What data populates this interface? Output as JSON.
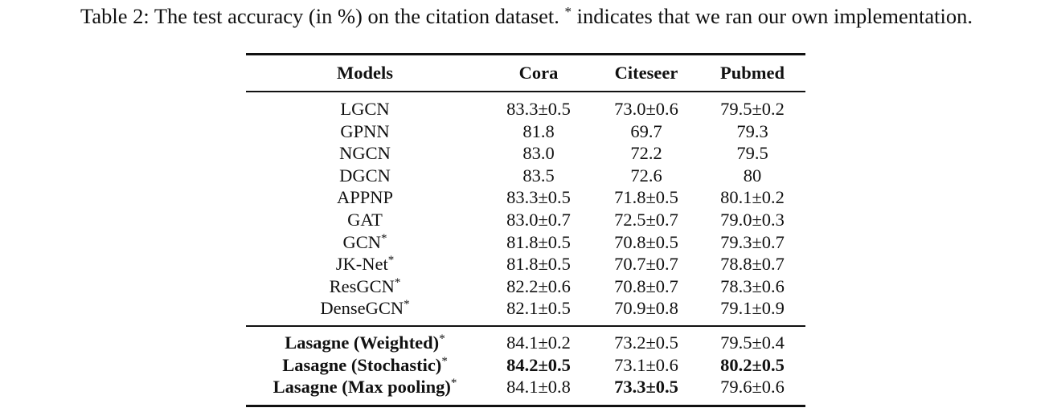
{
  "caption": {
    "prefix": "Table 2: The test accuracy (in %) on the citation dataset. ",
    "star": "*",
    "suffix": " indicates that we ran our own implementation."
  },
  "table": {
    "headers": [
      "Models",
      "Cora",
      "Citeseer",
      "Pubmed"
    ],
    "baselines": [
      {
        "model": "LGCN",
        "star": "",
        "cora": "83.3±0.5",
        "citeseer": "73.0±0.6",
        "pubmed": "79.5±0.2"
      },
      {
        "model": "GPNN",
        "star": "",
        "cora": "81.8",
        "citeseer": "69.7",
        "pubmed": "79.3"
      },
      {
        "model": "NGCN",
        "star": "",
        "cora": "83.0",
        "citeseer": "72.2",
        "pubmed": "79.5"
      },
      {
        "model": "DGCN",
        "star": "",
        "cora": "83.5",
        "citeseer": "72.6",
        "pubmed": "80"
      },
      {
        "model": "APPNP",
        "star": "",
        "cora": "83.3±0.5",
        "citeseer": "71.8±0.5",
        "pubmed": "80.1±0.2"
      },
      {
        "model": "GAT",
        "star": "",
        "cora": "83.0±0.7",
        "citeseer": "72.5±0.7",
        "pubmed": "79.0±0.3"
      },
      {
        "model": "GCN",
        "star": "*",
        "cora": "81.8±0.5",
        "citeseer": "70.8±0.5",
        "pubmed": "79.3±0.7"
      },
      {
        "model": "JK-Net",
        "star": "*",
        "cora": "81.8±0.5",
        "citeseer": "70.7±0.7",
        "pubmed": "78.8±0.7"
      },
      {
        "model": "ResGCN",
        "star": "*",
        "cora": "82.2±0.6",
        "citeseer": "70.8±0.7",
        "pubmed": "78.3±0.6"
      },
      {
        "model": "DenseGCN",
        "star": "*",
        "cora": "82.1±0.5",
        "citeseer": "70.9±0.8",
        "pubmed": "79.1±0.9"
      }
    ],
    "ours": [
      {
        "model": "Lasagne (Weighted)",
        "star": "*",
        "cora": "84.1±0.2",
        "citeseer": "73.2±0.5",
        "pubmed": "79.5±0.4",
        "bold": []
      },
      {
        "model": "Lasagne (Stochastic)",
        "star": "*",
        "cora": "84.2±0.5",
        "citeseer": "73.1±0.6",
        "pubmed": "80.2±0.5",
        "bold": [
          "cora",
          "pubmed"
        ]
      },
      {
        "model": "Lasagne (Max pooling)",
        "star": "*",
        "cora": "84.1±0.8",
        "citeseer": "73.3±0.5",
        "pubmed": "79.6±0.6",
        "bold": [
          "citeseer"
        ]
      }
    ]
  }
}
